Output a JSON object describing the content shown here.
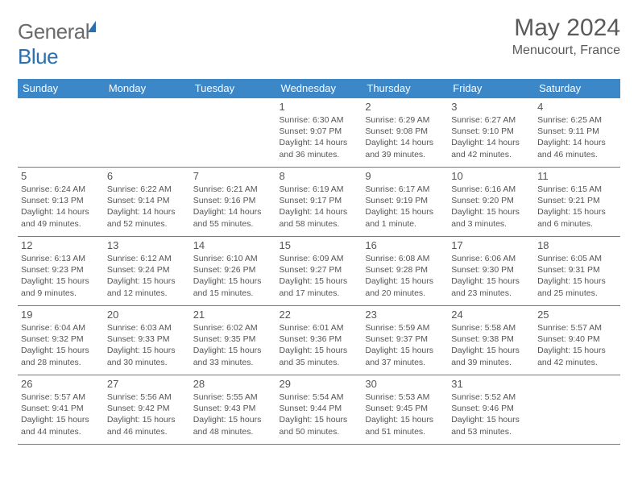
{
  "brand": {
    "part1": "General",
    "part2": "Blue"
  },
  "title": "May 2024",
  "location": "Menucourt, France",
  "day_headers": [
    "Sunday",
    "Monday",
    "Tuesday",
    "Wednesday",
    "Thursday",
    "Friday",
    "Saturday"
  ],
  "colors": {
    "header_bg": "#3b87c8",
    "header_text": "#ffffff",
    "border": "#3b87c8",
    "text": "#555555"
  },
  "weeks": [
    [
      null,
      null,
      null,
      {
        "n": "1",
        "sr": "6:30 AM",
        "ss": "9:07 PM",
        "dl": "14 hours and 36 minutes."
      },
      {
        "n": "2",
        "sr": "6:29 AM",
        "ss": "9:08 PM",
        "dl": "14 hours and 39 minutes."
      },
      {
        "n": "3",
        "sr": "6:27 AM",
        "ss": "9:10 PM",
        "dl": "14 hours and 42 minutes."
      },
      {
        "n": "4",
        "sr": "6:25 AM",
        "ss": "9:11 PM",
        "dl": "14 hours and 46 minutes."
      }
    ],
    [
      {
        "n": "5",
        "sr": "6:24 AM",
        "ss": "9:13 PM",
        "dl": "14 hours and 49 minutes."
      },
      {
        "n": "6",
        "sr": "6:22 AM",
        "ss": "9:14 PM",
        "dl": "14 hours and 52 minutes."
      },
      {
        "n": "7",
        "sr": "6:21 AM",
        "ss": "9:16 PM",
        "dl": "14 hours and 55 minutes."
      },
      {
        "n": "8",
        "sr": "6:19 AM",
        "ss": "9:17 PM",
        "dl": "14 hours and 58 minutes."
      },
      {
        "n": "9",
        "sr": "6:17 AM",
        "ss": "9:19 PM",
        "dl": "15 hours and 1 minute."
      },
      {
        "n": "10",
        "sr": "6:16 AM",
        "ss": "9:20 PM",
        "dl": "15 hours and 3 minutes."
      },
      {
        "n": "11",
        "sr": "6:15 AM",
        "ss": "9:21 PM",
        "dl": "15 hours and 6 minutes."
      }
    ],
    [
      {
        "n": "12",
        "sr": "6:13 AM",
        "ss": "9:23 PM",
        "dl": "15 hours and 9 minutes."
      },
      {
        "n": "13",
        "sr": "6:12 AM",
        "ss": "9:24 PM",
        "dl": "15 hours and 12 minutes."
      },
      {
        "n": "14",
        "sr": "6:10 AM",
        "ss": "9:26 PM",
        "dl": "15 hours and 15 minutes."
      },
      {
        "n": "15",
        "sr": "6:09 AM",
        "ss": "9:27 PM",
        "dl": "15 hours and 17 minutes."
      },
      {
        "n": "16",
        "sr": "6:08 AM",
        "ss": "9:28 PM",
        "dl": "15 hours and 20 minutes."
      },
      {
        "n": "17",
        "sr": "6:06 AM",
        "ss": "9:30 PM",
        "dl": "15 hours and 23 minutes."
      },
      {
        "n": "18",
        "sr": "6:05 AM",
        "ss": "9:31 PM",
        "dl": "15 hours and 25 minutes."
      }
    ],
    [
      {
        "n": "19",
        "sr": "6:04 AM",
        "ss": "9:32 PM",
        "dl": "15 hours and 28 minutes."
      },
      {
        "n": "20",
        "sr": "6:03 AM",
        "ss": "9:33 PM",
        "dl": "15 hours and 30 minutes."
      },
      {
        "n": "21",
        "sr": "6:02 AM",
        "ss": "9:35 PM",
        "dl": "15 hours and 33 minutes."
      },
      {
        "n": "22",
        "sr": "6:01 AM",
        "ss": "9:36 PM",
        "dl": "15 hours and 35 minutes."
      },
      {
        "n": "23",
        "sr": "5:59 AM",
        "ss": "9:37 PM",
        "dl": "15 hours and 37 minutes."
      },
      {
        "n": "24",
        "sr": "5:58 AM",
        "ss": "9:38 PM",
        "dl": "15 hours and 39 minutes."
      },
      {
        "n": "25",
        "sr": "5:57 AM",
        "ss": "9:40 PM",
        "dl": "15 hours and 42 minutes."
      }
    ],
    [
      {
        "n": "26",
        "sr": "5:57 AM",
        "ss": "9:41 PM",
        "dl": "15 hours and 44 minutes."
      },
      {
        "n": "27",
        "sr": "5:56 AM",
        "ss": "9:42 PM",
        "dl": "15 hours and 46 minutes."
      },
      {
        "n": "28",
        "sr": "5:55 AM",
        "ss": "9:43 PM",
        "dl": "15 hours and 48 minutes."
      },
      {
        "n": "29",
        "sr": "5:54 AM",
        "ss": "9:44 PM",
        "dl": "15 hours and 50 minutes."
      },
      {
        "n": "30",
        "sr": "5:53 AM",
        "ss": "9:45 PM",
        "dl": "15 hours and 51 minutes."
      },
      {
        "n": "31",
        "sr": "5:52 AM",
        "ss": "9:46 PM",
        "dl": "15 hours and 53 minutes."
      },
      null
    ]
  ]
}
